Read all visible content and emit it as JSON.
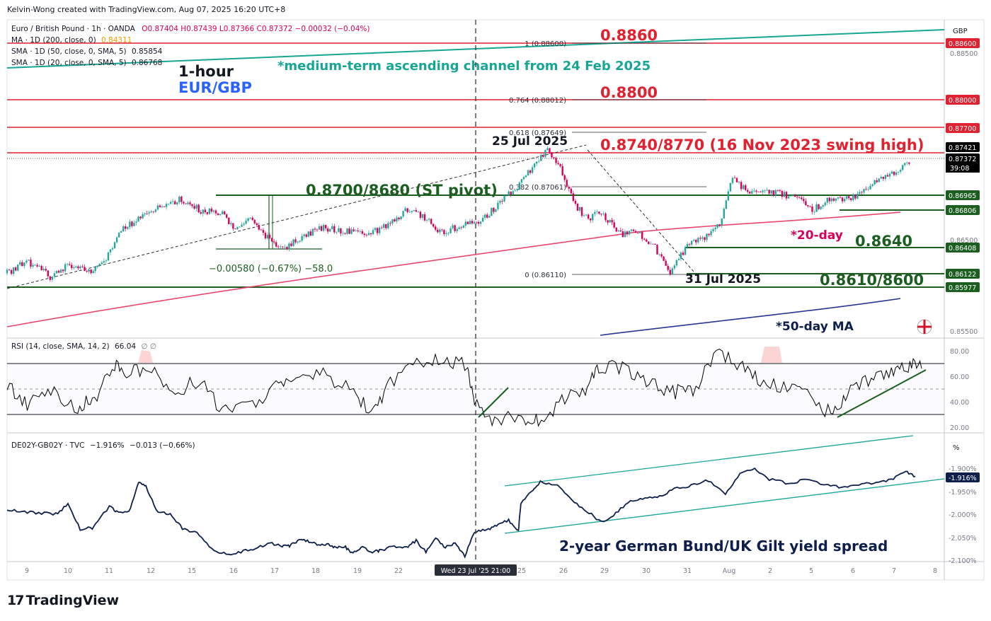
{
  "header": {
    "credit": "Kelvin-Wong created with TradingView.com, Aug 07, 2025 16:20 UTC+8",
    "symbol_line": "Euro / British Pound · 1h · OANDA",
    "ohlc": "O0.87404 H0.87439 L0.87366 C0.87372 −0.00032 (−0.04%)",
    "ma200": "MA · 1D (200, close, 0)",
    "ma200_val": "0.84311",
    "sma50": "SMA · 1D (50, close, 0, SMA, 5)",
    "sma50_val": "0.85854",
    "sma20": "SMA · 1D (20, close, 0, SMA, 5)",
    "sma20_val": "0.86768"
  },
  "titles": {
    "timeframe": "1-hour",
    "pair": "EUR/GBP",
    "channel_note": "*medium-term ascending channel from 24 Feb 2025"
  },
  "colors": {
    "resistance": "#e0212f",
    "support": "#1b5e20",
    "teal": "#17a693",
    "candle_up": "#26a69a",
    "candle_down": "#d6005b",
    "ma_red": "#e8476b",
    "ma_navy": "#283593",
    "rsi": "#000000",
    "spread": "#0d1f4a",
    "price_tag": "#000000"
  },
  "brand": "TradingView",
  "chart_data": [
    {
      "type": "candlestick",
      "title": "Euro / British Pound · 1h · OANDA",
      "currency": "GBP",
      "x_ticks": [
        "9",
        "10",
        "11",
        "12",
        "15",
        "16",
        "17",
        "18",
        "19",
        "22",
        "Wed 23 Jul '25  21:00",
        "25",
        "26",
        "29",
        "30",
        "31",
        "Aug",
        "2",
        "5",
        "6",
        "7",
        "8"
      ],
      "y_ticks": [
        "0.88500",
        "0.86500",
        "0.85500"
      ],
      "ylim": [
        0.855,
        0.887
      ],
      "price_path": [
        {
          "t": 0,
          "p": 0.8614
        },
        {
          "t": 0.4,
          "p": 0.8628
        },
        {
          "t": 0.9,
          "p": 0.8609
        },
        {
          "t": 1.2,
          "p": 0.8624
        },
        {
          "t": 1.6,
          "p": 0.8615
        },
        {
          "t": 1.95,
          "p": 0.8626
        },
        {
          "t": 2.3,
          "p": 0.8664
        },
        {
          "t": 2.7,
          "p": 0.8676
        },
        {
          "t": 3.05,
          "p": 0.8688
        },
        {
          "t": 3.5,
          "p": 0.8696
        },
        {
          "t": 3.9,
          "p": 0.8683
        },
        {
          "t": 4.35,
          "p": 0.868
        },
        {
          "t": 4.55,
          "p": 0.8661
        },
        {
          "t": 4.85,
          "p": 0.8678
        },
        {
          "t": 5.2,
          "p": 0.8653
        },
        {
          "t": 5.5,
          "p": 0.864
        },
        {
          "t": 5.9,
          "p": 0.8654
        },
        {
          "t": 6.3,
          "p": 0.8664
        },
        {
          "t": 6.8,
          "p": 0.8661
        },
        {
          "t": 7.2,
          "p": 0.8657
        },
        {
          "t": 7.6,
          "p": 0.8666
        },
        {
          "t": 8.0,
          "p": 0.8685
        },
        {
          "t": 8.4,
          "p": 0.8674
        },
        {
          "t": 8.7,
          "p": 0.8658
        },
        {
          "t": 9.1,
          "p": 0.8668
        },
        {
          "t": 9.5,
          "p": 0.8673
        },
        {
          "t": 9.8,
          "p": 0.8689
        },
        {
          "t": 10.2,
          "p": 0.8709
        },
        {
          "t": 10.5,
          "p": 0.873
        },
        {
          "t": 10.8,
          "p": 0.875
        },
        {
          "t": 11.1,
          "p": 0.8727
        },
        {
          "t": 11.35,
          "p": 0.869
        },
        {
          "t": 11.6,
          "p": 0.8675
        },
        {
          "t": 11.9,
          "p": 0.8681
        },
        {
          "t": 12.25,
          "p": 0.8657
        },
        {
          "t": 12.6,
          "p": 0.8659
        },
        {
          "t": 12.95,
          "p": 0.8644
        },
        {
          "t": 13.25,
          "p": 0.8613
        },
        {
          "t": 13.6,
          "p": 0.8644
        },
        {
          "t": 13.95,
          "p": 0.8652
        },
        {
          "t": 14.3,
          "p": 0.8673
        },
        {
          "t": 14.5,
          "p": 0.8718
        },
        {
          "t": 14.7,
          "p": 0.871
        },
        {
          "t": 15.0,
          "p": 0.8702
        },
        {
          "t": 15.4,
          "p": 0.8704
        },
        {
          "t": 15.8,
          "p": 0.8697
        },
        {
          "t": 16.1,
          "p": 0.8684
        },
        {
          "t": 16.5,
          "p": 0.8697
        },
        {
          "t": 16.9,
          "p": 0.8698
        },
        {
          "t": 17.3,
          "p": 0.8712
        },
        {
          "t": 17.7,
          "p": 0.8724
        },
        {
          "t": 18.05,
          "p": 0.8737
        }
      ],
      "indicators": [
        {
          "name": "20-day SMA",
          "label": "*20-day",
          "y": [
            0.8573,
            0.8662,
            0.8688
          ]
        },
        {
          "name": "50-day SMA",
          "label": "*50-day MA",
          "y": [
            0.8544,
            0.8555
          ]
        },
        {
          "name": "ascending channel",
          "y": [
            0.8831,
            0.8874
          ]
        }
      ],
      "levels": [
        {
          "value": 0.886,
          "label": "0.8860",
          "kind": "resistance"
        },
        {
          "value": 0.88,
          "label": "0.8800",
          "kind": "resistance"
        },
        {
          "value": 0.877,
          "label": "0.8740/8770 (16 Nov 2023 swing high)",
          "kind": "resistance"
        },
        {
          "value": 0.8742,
          "label": "",
          "kind": "resistance"
        },
        {
          "value": 0.86965,
          "label": "0.8700/8680 (ST pivot)",
          "kind": "support"
        },
        {
          "value": 0.86806,
          "label": "",
          "kind": "support"
        },
        {
          "value": 0.86408,
          "label": "0.8640",
          "kind": "support"
        },
        {
          "value": 0.86122,
          "label": "0.8610/8600",
          "kind": "support"
        },
        {
          "value": 0.85977,
          "label": "",
          "kind": "support"
        }
      ],
      "price_tags": [
        "0.88600",
        "0.88000",
        "0.87700",
        "0.87421",
        "0.87372",
        "0.86965",
        "0.86806",
        "0.86408",
        "0.86122",
        "0.85977"
      ],
      "countdown": "39:08",
      "fib_levels": [
        {
          "ratio": "1",
          "value": "0.88600",
          "label": "1 (0.88600)"
        },
        {
          "ratio": "0.764",
          "value": "0.88012",
          "label": "0.764 (0.88012)"
        },
        {
          "ratio": "0.618",
          "value": "0.87649",
          "label": "0.618 (0.87649)"
        },
        {
          "ratio": "0.382",
          "value": "0.87061",
          "label": "0.382 (0.87061)"
        },
        {
          "ratio": "0",
          "value": "0.86110",
          "label": "0 (0.86110)"
        }
      ],
      "annotations": [
        "25 Jul 2025",
        "31 Jul 2025",
        "−0.00580 (−0.67%) −58.0"
      ]
    },
    {
      "type": "line",
      "title": "RSI (14, close, SMA, 14, 2)",
      "value": "66.04",
      "y_ticks": [
        "80.00",
        "60.00",
        "40.00",
        "20.00"
      ],
      "ylim": [
        15,
        87
      ],
      "bands": [
        70,
        30
      ],
      "midline": 50,
      "points": [
        [
          0,
          52
        ],
        [
          0.6,
          38
        ],
        [
          1.3,
          48
        ],
        [
          2.1,
          35
        ],
        [
          2.6,
          43
        ],
        [
          3.2,
          70
        ],
        [
          3.6,
          62
        ],
        [
          4.3,
          66
        ],
        [
          5.0,
          45
        ],
        [
          5.7,
          58
        ],
        [
          6.4,
          32
        ],
        [
          7.2,
          37
        ],
        [
          8.0,
          52
        ],
        [
          8.6,
          57
        ],
        [
          9.4,
          61
        ],
        [
          10.3,
          48
        ],
        [
          10.9,
          30
        ],
        [
          11.4,
          55
        ],
        [
          12.3,
          72
        ],
        [
          13.0,
          73
        ],
        [
          13.7,
          68
        ],
        [
          13.9,
          38
        ],
        [
          14.5,
          25
        ],
        [
          15.3,
          29
        ],
        [
          15.8,
          24
        ],
        [
          16.5,
          40
        ],
        [
          17.2,
          50
        ],
        [
          17.6,
          68
        ],
        [
          18.4,
          66
        ],
        [
          19.1,
          55
        ],
        [
          19.8,
          48
        ],
        [
          20.4,
          47
        ],
        [
          21.1,
          81
        ],
        [
          21.8,
          68
        ],
        [
          22.4,
          55
        ],
        [
          23.2,
          52
        ],
        [
          23.8,
          44
        ],
        [
          24.5,
          31
        ],
        [
          25.0,
          46
        ],
        [
          25.7,
          58
        ],
        [
          26.3,
          65
        ],
        [
          26.8,
          69
        ],
        [
          27.2,
          66
        ]
      ]
    },
    {
      "type": "line",
      "title": "DE02Y-GB02Y · TVC",
      "subtitle": "2-year German Bund/UK Gilt yield spread",
      "value": "−1.916%",
      "change": "−0.013 (−0.66%)",
      "unit": "%",
      "y_ticks": [
        "-1.900%",
        "-1.950%",
        "-2.000%",
        "-2.050%",
        "-2.100%"
      ],
      "last_tag": "-1.916%",
      "ylim": [
        -2.104,
        -1.862
      ],
      "points": [
        [
          0,
          -1.99
        ],
        [
          0.6,
          -1.9945
        ],
        [
          1.3,
          -1.997
        ],
        [
          2.0,
          -1.9995
        ],
        [
          2.5,
          -1.979
        ],
        [
          3.0,
          -2.032
        ],
        [
          3.5,
          -2.03
        ],
        [
          4.2,
          -1.983
        ],
        [
          4.5,
          -1.995
        ],
        [
          5.0,
          -1.996
        ],
        [
          5.4,
          -1.929
        ],
        [
          5.7,
          -1.94
        ],
        [
          6.2,
          -1.998
        ],
        [
          6.7,
          -1.998
        ],
        [
          7.2,
          -2.031
        ],
        [
          7.8,
          -2.041
        ],
        [
          8.4,
          -2.075
        ],
        [
          9.0,
          -2.088
        ],
        [
          9.6,
          -2.082
        ],
        [
          10.2,
          -2.075
        ],
        [
          10.8,
          -2.062
        ],
        [
          11.3,
          -2.07
        ],
        [
          11.6,
          -2.069
        ],
        [
          12.0,
          -2.056
        ],
        [
          12.4,
          -2.059
        ],
        [
          12.8,
          -2.069
        ],
        [
          13.2,
          -2.066
        ],
        [
          13.5,
          -2.073
        ],
        [
          13.9,
          -2.072
        ],
        [
          14.2,
          -2.085
        ],
        [
          14.6,
          -2.071
        ],
        [
          15.0,
          -2.082
        ],
        [
          15.3,
          -2.079
        ],
        [
          15.9,
          -2.069
        ],
        [
          16.4,
          -2.073
        ],
        [
          16.8,
          -2.057
        ],
        [
          17.2,
          -2.082
        ],
        [
          17.6,
          -2.053
        ],
        [
          18.0,
          -2.072
        ],
        [
          18.4,
          -2.062
        ],
        [
          18.8,
          -2.091
        ],
        [
          19.2,
          -2.037
        ],
        [
          19.7,
          -2.034
        ],
        [
          20.1,
          -2.025
        ],
        [
          20.6,
          -2.013
        ],
        [
          21.0,
          -2.038
        ],
        [
          21.1,
          -1.975
        ],
        [
          21.6,
          -1.947
        ],
        [
          21.9,
          -1.93
        ],
        [
          22.6,
          -1.935
        ],
        [
          23.2,
          -1.972
        ],
        [
          23.8,
          -1.992
        ],
        [
          24.4,
          -2.018
        ],
        [
          25.0,
          -1.998
        ],
        [
          25.6,
          -1.97
        ],
        [
          26.2,
          -1.965
        ],
        [
          26.8,
          -1.962
        ],
        [
          27.4,
          -1.945
        ],
        [
          28.1,
          -1.937
        ],
        [
          28.8,
          -1.926
        ],
        [
          29.5,
          -1.956
        ],
        [
          30.1,
          -1.913
        ],
        [
          30.7,
          -1.902
        ],
        [
          31.3,
          -1.924
        ],
        [
          32.1,
          -1.933
        ],
        [
          32.8,
          -1.925
        ],
        [
          33.7,
          -1.938
        ],
        [
          34.4,
          -1.942
        ],
        [
          35.1,
          -1.935
        ],
        [
          35.7,
          -1.931
        ],
        [
          36.3,
          -1.926
        ],
        [
          36.9,
          -1.907
        ],
        [
          37.3,
          -1.918
        ]
      ]
    }
  ]
}
